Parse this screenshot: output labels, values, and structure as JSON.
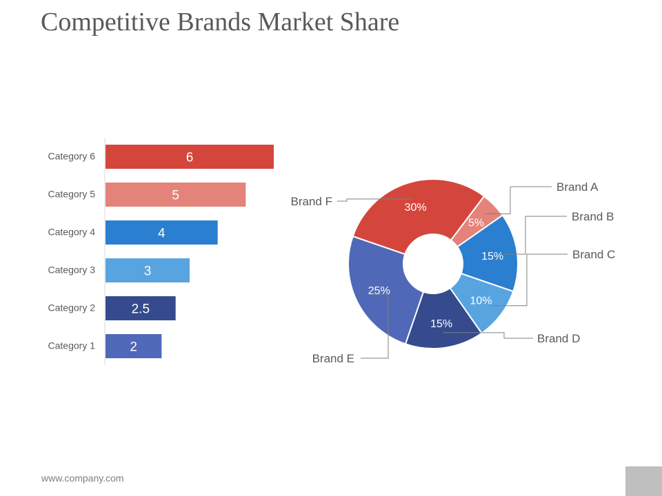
{
  "page": {
    "title": "Competitive Brands Market Share",
    "footer": "www.company.com"
  },
  "chart_data": [
    {
      "type": "bar",
      "orientation": "horizontal",
      "categories": [
        "Category 1",
        "Category 2",
        "Category 3",
        "Category 4",
        "Category 5",
        "Category 6"
      ],
      "values": [
        2,
        2.5,
        3,
        4,
        5,
        6
      ],
      "value_labels": [
        "2",
        "2.5",
        "3",
        "4",
        "5",
        "6"
      ],
      "colors": [
        "#5068b8",
        "#354b8e",
        "#58a4e0",
        "#2a7fd0",
        "#e3837a",
        "#d4463c"
      ],
      "xlim": [
        0,
        6
      ],
      "grid": false,
      "title": ""
    },
    {
      "type": "pie",
      "donut": true,
      "labels": [
        "Brand A",
        "Brand B",
        "Brand C",
        "Brand D",
        "Brand E",
        "Brand F"
      ],
      "slices": [
        {
          "name": "Brand A",
          "value": 5,
          "label": "5%",
          "color": "#e3837a"
        },
        {
          "name": "Brand B",
          "value": 15,
          "label": "15%",
          "color": "#2a7fd0"
        },
        {
          "name": "Brand C",
          "value": 10,
          "label": "10%",
          "color": "#58a4e0"
        },
        {
          "name": "Brand D",
          "value": 15,
          "label": "15%",
          "color": "#354b8e"
        },
        {
          "name": "Brand E",
          "value": 25,
          "label": "25%",
          "color": "#5068b8"
        },
        {
          "name": "Brand F",
          "value": 30,
          "label": "30%",
          "color": "#d4463c"
        }
      ],
      "callouts": [
        "Brand A",
        "Brand B",
        "Brand C",
        "Brand D",
        "Brand E",
        "Brand F"
      ],
      "title": ""
    }
  ]
}
